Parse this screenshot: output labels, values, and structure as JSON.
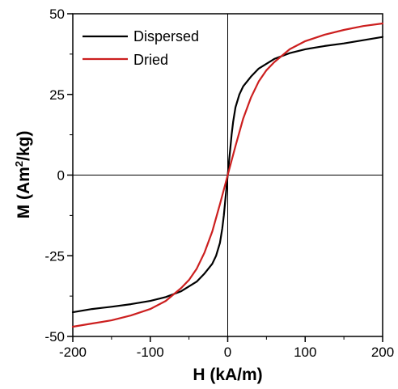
{
  "chart_data": {
    "type": "line",
    "title": "",
    "xlabel": "H (kA/m)",
    "ylabel_parts": {
      "main": "M (Am",
      "sup": "2",
      "end": "/kg)"
    },
    "xlim": [
      -200,
      200
    ],
    "ylim": [
      -50,
      50
    ],
    "xticks": [
      -200,
      -100,
      0,
      100,
      200
    ],
    "yticks": [
      -50,
      -25,
      0,
      25,
      50
    ],
    "ytick_labels": [
      "-50",
      "-25",
      "0",
      "25",
      "50"
    ],
    "xtick_labels": [
      "-200",
      "-100",
      "0",
      "100",
      "200"
    ],
    "grid": false,
    "legend_position": "top-left",
    "zero_lines": true,
    "series": [
      {
        "name": "Dispersed",
        "color": "#000000",
        "x": [
          -200,
          -175,
          -150,
          -125,
          -100,
          -80,
          -60,
          -40,
          -30,
          -20,
          -15,
          -10,
          -7,
          -5,
          -3,
          -2,
          -1,
          0,
          1,
          2,
          3,
          5,
          7,
          10,
          15,
          20,
          30,
          40,
          60,
          80,
          100,
          125,
          150,
          175,
          200
        ],
        "y": [
          -42.5,
          -41.5,
          -40.8,
          -40,
          -39,
          -37.8,
          -36,
          -33,
          -30.5,
          -27.5,
          -25,
          -21,
          -16.5,
          -12.5,
          -7.5,
          -5,
          -2.5,
          0,
          2.5,
          5,
          7.5,
          12.5,
          16.5,
          21,
          25,
          27.5,
          30.5,
          33,
          36,
          37.8,
          39,
          40,
          40.8,
          41.8,
          42.8
        ]
      },
      {
        "name": "Dried",
        "color": "#cc1f1f",
        "x": [
          -200,
          -175,
          -150,
          -125,
          -100,
          -80,
          -60,
          -50,
          -40,
          -30,
          -20,
          -10,
          -5,
          0,
          5,
          10,
          20,
          30,
          40,
          50,
          60,
          80,
          100,
          125,
          150,
          175,
          200
        ],
        "y": [
          -47,
          -46,
          -45,
          -43.5,
          -41.5,
          -39,
          -35,
          -32.5,
          -29,
          -24,
          -17.5,
          -9,
          -4.5,
          0,
          4.5,
          9,
          17.5,
          24,
          29,
          32.5,
          35,
          39,
          41.5,
          43.5,
          45,
          46.2,
          47
        ]
      }
    ]
  }
}
